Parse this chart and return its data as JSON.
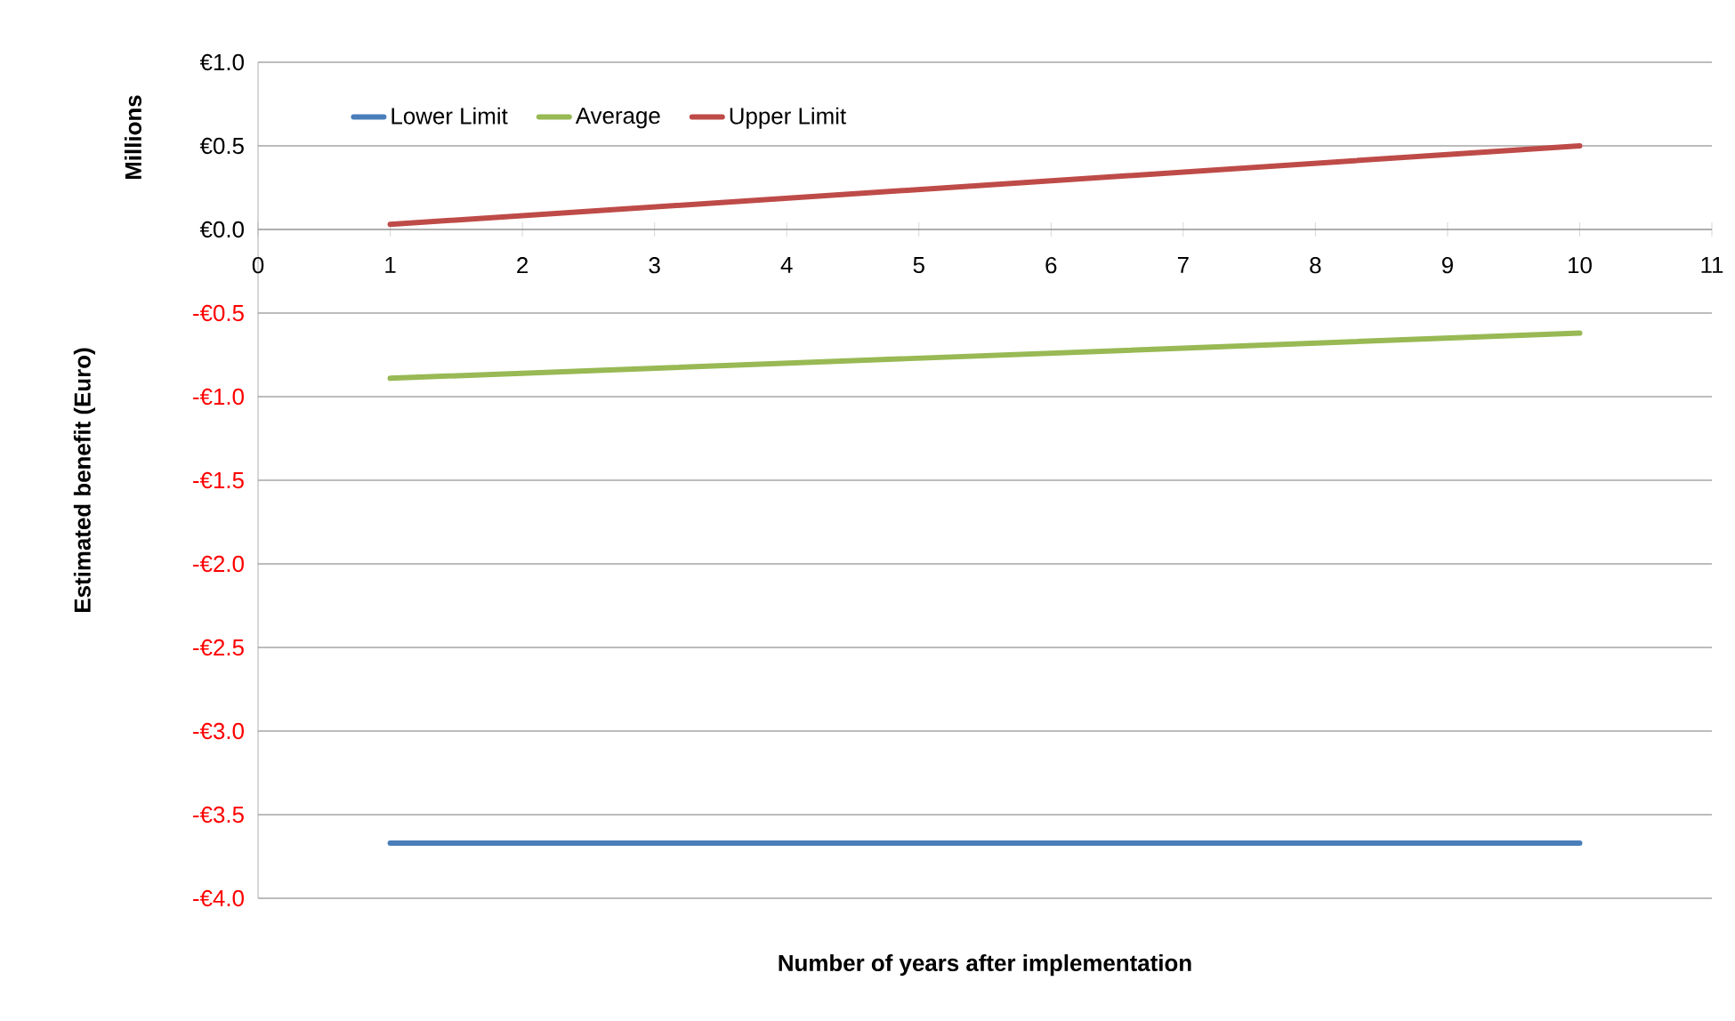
{
  "chart_data": {
    "type": "line",
    "xlabel": "Number of years after implementation",
    "ylabel": "Estimated benefit (Euro)",
    "annotations": [
      "Millions"
    ],
    "x": [
      1,
      10
    ],
    "xlim": [
      0,
      11
    ],
    "xticks": [
      0,
      1,
      2,
      3,
      4,
      5,
      6,
      7,
      8,
      9,
      10,
      11
    ],
    "ylim": [
      -4,
      1
    ],
    "yticks": [
      {
        "value": -4,
        "label": "-€4.0"
      },
      {
        "value": -3.5,
        "label": "-€3.5"
      },
      {
        "value": -3,
        "label": "-€3.0"
      },
      {
        "value": -2.5,
        "label": "-€2.5"
      },
      {
        "value": -2,
        "label": "-€2.0"
      },
      {
        "value": -1.5,
        "label": "-€1.5"
      },
      {
        "value": -1,
        "label": "-€1.0"
      },
      {
        "value": -0.5,
        "label": "-€0.5"
      },
      {
        "value": 0,
        "label": "€0.0"
      },
      {
        "value": 0.5,
        "label": "€0.5"
      },
      {
        "value": 1,
        "label": "€1.0"
      }
    ],
    "grid": "y",
    "legend": "top left",
    "marker": "none",
    "line_style": "solid",
    "series": [
      {
        "name": "Lower Limit",
        "color": "#4a7ebb",
        "values": [
          -3.67,
          -3.67
        ]
      },
      {
        "name": "Average",
        "color": "#98b954",
        "values": [
          -0.89,
          -0.62
        ]
      },
      {
        "name": "Upper Limit",
        "color": "#be4b48",
        "values": [
          0.03,
          0.5
        ]
      }
    ]
  }
}
